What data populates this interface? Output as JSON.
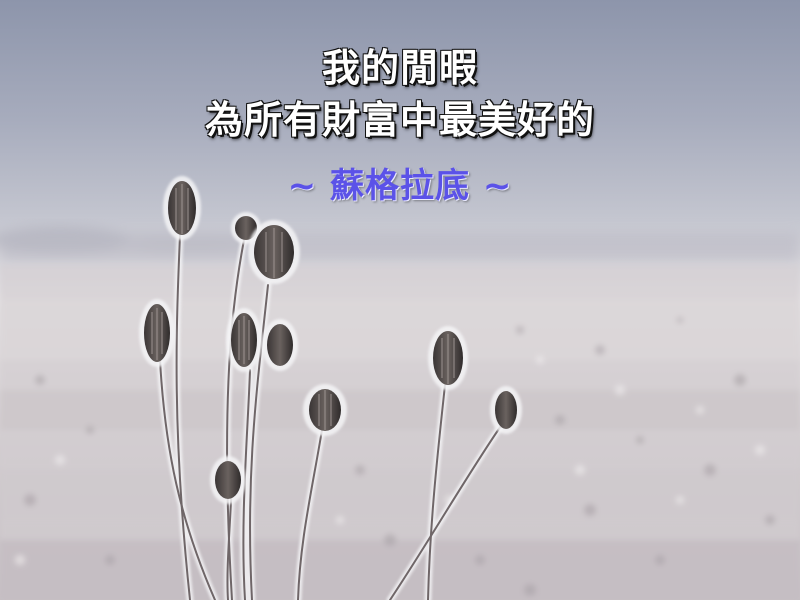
{
  "quote": {
    "line1": "我的閒暇",
    "line2": "為所有財富中最美好的",
    "attribution": "~  蘇格拉底  ~"
  },
  "colors": {
    "quote_text": "#ffffff",
    "attribution_text": "#5b52e8",
    "sky": "#8d95ab",
    "frost": "#f4f4f6"
  }
}
